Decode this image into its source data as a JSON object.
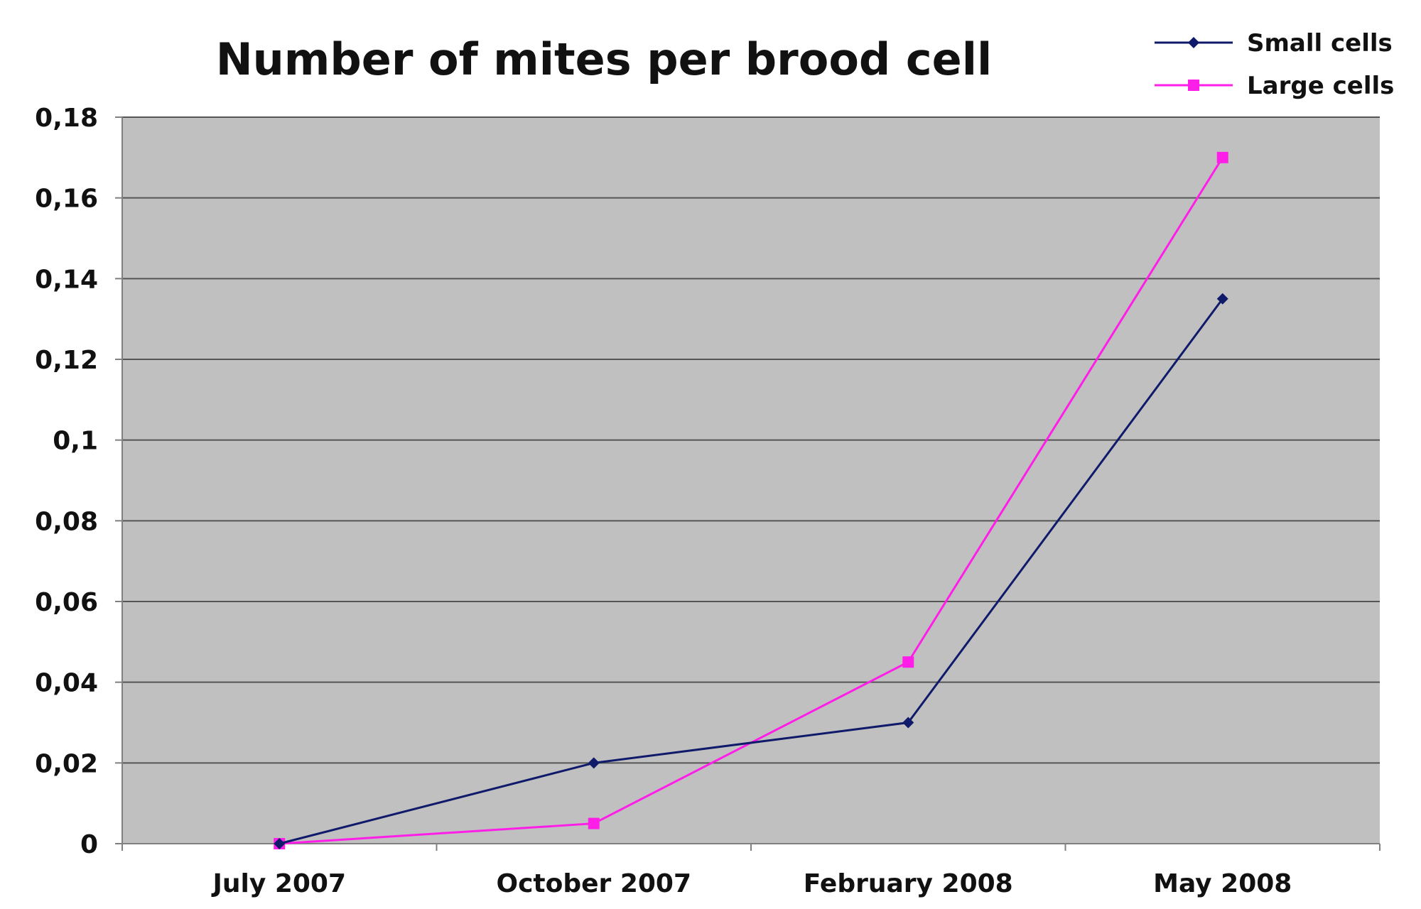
{
  "chart_data": {
    "type": "line",
    "title": "Number of mites per brood cell",
    "xlabel": "",
    "ylabel": "",
    "categories": [
      "July 2007",
      "October 2007",
      "February 2008",
      "May 2008"
    ],
    "y_ticks": [
      "0",
      "0,02",
      "0,04",
      "0,06",
      "0,08",
      "0,1",
      "0,12",
      "0,14",
      "0,16",
      "0,18"
    ],
    "ylim": [
      0,
      0.18
    ],
    "grid": true,
    "legend_position": "top-right",
    "plot_background": "#c0c0c0",
    "series": [
      {
        "name": "Small cells",
        "color": "#0f1a6b",
        "marker": "diamond",
        "values": [
          0,
          0.02,
          0.03,
          0.135
        ]
      },
      {
        "name": "Large cells",
        "color": "#ff1ee8",
        "marker": "square",
        "values": [
          0,
          0.005,
          0.045,
          0.17
        ]
      }
    ]
  }
}
